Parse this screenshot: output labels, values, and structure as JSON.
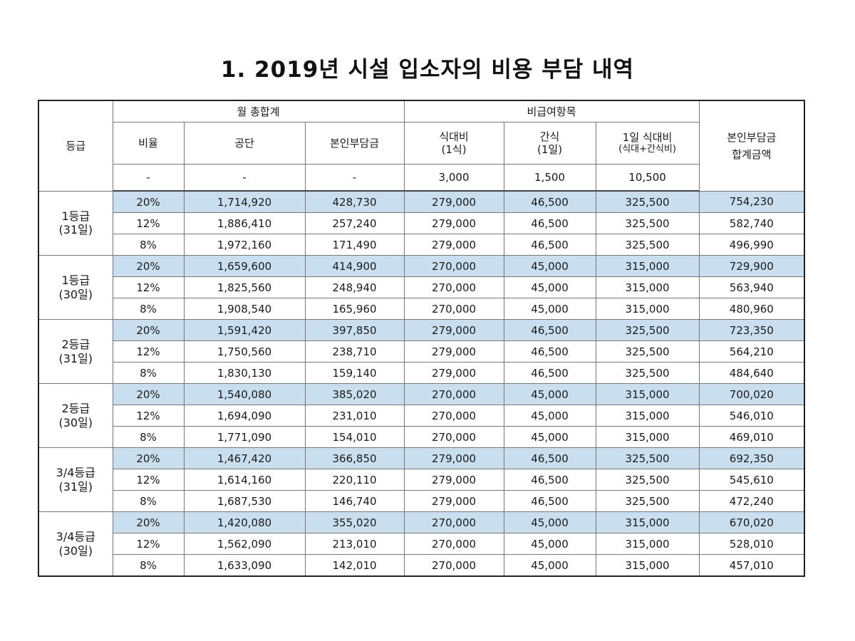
{
  "title": "1. 2019년 시설 입소자의 비용 부담 내역",
  "headers": {
    "grade": "등급",
    "monthly_total": "월 총합계",
    "non_covered": "비급여항목",
    "ratio": "비율",
    "gongdan": "공단",
    "self_pay": "본인부담금",
    "meal_line1": "식대비",
    "meal_line2": "(1식)",
    "snack_line1": "간식",
    "snack_line2": "(1일)",
    "daily_line1": "1일 식대비",
    "daily_line2": "(식대+간식비)",
    "total_line1": "본인부담금",
    "total_line2": "합계금액"
  },
  "unit_row": {
    "ratio": "-",
    "gongdan": "-",
    "self_pay": "-",
    "meal": "3,000",
    "snack": "1,500",
    "daily": "10,500"
  },
  "groups": [
    {
      "grade": "1등급",
      "days": "(31일)",
      "rows": [
        {
          "ratio": "20%",
          "gongdan": "1,714,920",
          "self_pay": "428,730",
          "meal": "279,000",
          "snack": "46,500",
          "daily": "325,500",
          "total": "754,230"
        },
        {
          "ratio": "12%",
          "gongdan": "1,886,410",
          "self_pay": "257,240",
          "meal": "279,000",
          "snack": "46,500",
          "daily": "325,500",
          "total": "582,740"
        },
        {
          "ratio": "8%",
          "gongdan": "1,972,160",
          "self_pay": "171,490",
          "meal": "279,000",
          "snack": "46,500",
          "daily": "325,500",
          "total": "496,990"
        }
      ]
    },
    {
      "grade": "1등급",
      "days": "(30일)",
      "rows": [
        {
          "ratio": "20%",
          "gongdan": "1,659,600",
          "self_pay": "414,900",
          "meal": "270,000",
          "snack": "45,000",
          "daily": "315,000",
          "total": "729,900"
        },
        {
          "ratio": "12%",
          "gongdan": "1,825,560",
          "self_pay": "248,940",
          "meal": "270,000",
          "snack": "45,000",
          "daily": "315,000",
          "total": "563,940"
        },
        {
          "ratio": "8%",
          "gongdan": "1,908,540",
          "self_pay": "165,960",
          "meal": "270,000",
          "snack": "45,000",
          "daily": "315,000",
          "total": "480,960"
        }
      ]
    },
    {
      "grade": "2등급",
      "days": "(31일)",
      "rows": [
        {
          "ratio": "20%",
          "gongdan": "1,591,420",
          "self_pay": "397,850",
          "meal": "279,000",
          "snack": "46,500",
          "daily": "325,500",
          "total": "723,350"
        },
        {
          "ratio": "12%",
          "gongdan": "1,750,560",
          "self_pay": "238,710",
          "meal": "279,000",
          "snack": "46,500",
          "daily": "325,500",
          "total": "564,210"
        },
        {
          "ratio": "8%",
          "gongdan": "1,830,130",
          "self_pay": "159,140",
          "meal": "279,000",
          "snack": "46,500",
          "daily": "325,500",
          "total": "484,640"
        }
      ]
    },
    {
      "grade": "2등급",
      "days": "(30일)",
      "rows": [
        {
          "ratio": "20%",
          "gongdan": "1,540,080",
          "self_pay": "385,020",
          "meal": "270,000",
          "snack": "45,000",
          "daily": "315,000",
          "total": "700,020"
        },
        {
          "ratio": "12%",
          "gongdan": "1,694,090",
          "self_pay": "231,010",
          "meal": "270,000",
          "snack": "45,000",
          "daily": "315,000",
          "total": "546,010"
        },
        {
          "ratio": "8%",
          "gongdan": "1,771,090",
          "self_pay": "154,010",
          "meal": "270,000",
          "snack": "45,000",
          "daily": "315,000",
          "total": "469,010"
        }
      ]
    },
    {
      "grade": "3/4등급",
      "days": "(31일)",
      "rows": [
        {
          "ratio": "20%",
          "gongdan": "1,467,420",
          "self_pay": "366,850",
          "meal": "279,000",
          "snack": "46,500",
          "daily": "325,500",
          "total": "692,350"
        },
        {
          "ratio": "12%",
          "gongdan": "1,614,160",
          "self_pay": "220,110",
          "meal": "279,000",
          "snack": "46,500",
          "daily": "325,500",
          "total": "545,610"
        },
        {
          "ratio": "8%",
          "gongdan": "1,687,530",
          "self_pay": "146,740",
          "meal": "279,000",
          "snack": "46,500",
          "daily": "325,500",
          "total": "472,240"
        }
      ]
    },
    {
      "grade": "3/4등급",
      "days": "(30일)",
      "rows": [
        {
          "ratio": "20%",
          "gongdan": "1,420,080",
          "self_pay": "355,020",
          "meal": "270,000",
          "snack": "45,000",
          "daily": "315,000",
          "total": "670,020"
        },
        {
          "ratio": "12%",
          "gongdan": "1,562,090",
          "self_pay": "213,010",
          "meal": "270,000",
          "snack": "45,000",
          "daily": "315,000",
          "total": "528,010"
        },
        {
          "ratio": "8%",
          "gongdan": "1,633,090",
          "self_pay": "142,010",
          "meal": "270,000",
          "snack": "45,000",
          "daily": "315,000",
          "total": "457,010"
        }
      ]
    }
  ],
  "colors": {
    "highlight_row": "#c9dfef"
  }
}
